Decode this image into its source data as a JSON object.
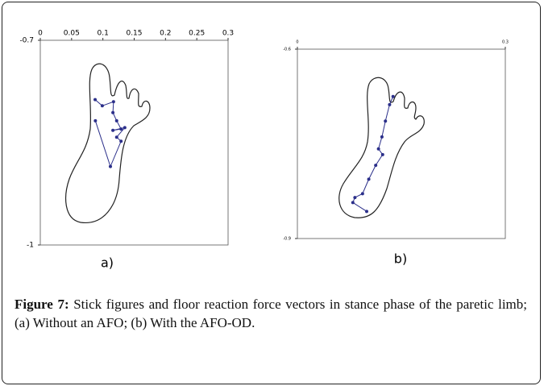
{
  "chart_data": [
    {
      "type": "line",
      "label": "a)",
      "color": "#2b2f8a",
      "x": [
        0.0876,
        0.099,
        0.117,
        0.116,
        0.122,
        0.129,
        0.116,
        0.135,
        0.122,
        0.129,
        0.112,
        0.088
      ],
      "values": [
        -0.787,
        -0.796,
        -0.79,
        -0.806,
        -0.818,
        -0.83,
        -0.832,
        -0.828,
        -0.842,
        -0.848,
        -0.885,
        -0.818
      ],
      "xlim": [
        0,
        0.3
      ],
      "ylim": [
        -1,
        -0.7
      ],
      "xticks": [
        0,
        0.05,
        0.1,
        0.15,
        0.2,
        0.25,
        0.3
      ],
      "yticks": [
        -0.7,
        -1
      ]
    },
    {
      "type": "line",
      "label": "b)",
      "color": "#2b2f8a",
      "x": [
        0.138,
        0.133,
        0.127,
        0.122,
        0.117,
        0.123,
        0.113,
        0.103,
        0.094,
        0.083,
        0.08,
        0.1
      ],
      "values": [
        -0.675,
        -0.688,
        -0.714,
        -0.739,
        -0.758,
        -0.767,
        -0.784,
        -0.806,
        -0.829,
        -0.835,
        -0.843,
        -0.857
      ],
      "xlim": [
        0,
        0.3
      ],
      "ylim": [
        -0.9,
        -0.6
      ],
      "xticks": [
        0,
        0.3
      ],
      "yticks": [
        -0.6,
        -0.9
      ]
    }
  ],
  "caption": {
    "label": "Figure 7:",
    "text": " Stick figures and floor reaction force vectors in stance phase of the paretic limb; (a) Without an AFO; (b) With the AFO-OD."
  }
}
